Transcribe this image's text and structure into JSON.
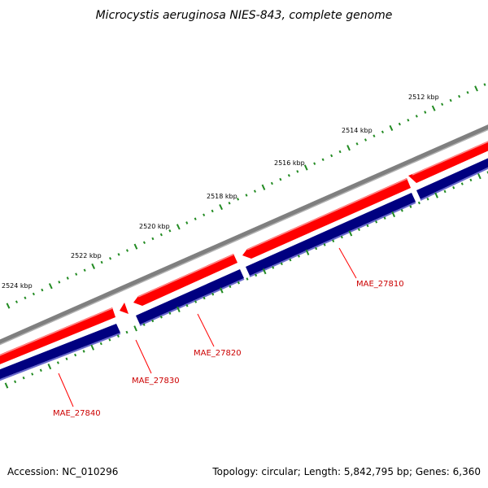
{
  "title": "Microcystis aeruginosa NIES-843, complete genome",
  "scale_labels": [
    "2512 kbp",
    "2514 kbp",
    "2516 kbp",
    "2518 kbp",
    "2520 kbp",
    "2522 kbp",
    "2524 kbp"
  ],
  "genes": [
    {
      "locus": "MAE_27810",
      "strand": "-"
    },
    {
      "locus": "MAE_27820",
      "strand": "-"
    },
    {
      "locus": "MAE_27830",
      "strand": "-"
    },
    {
      "locus": "MAE_27840",
      "strand": "-"
    }
  ],
  "footer": {
    "accession": "Accession: NC_010296",
    "summary": "Topology: circular; Length: 5,842,795 bp; Genes: 6,360"
  },
  "colors": {
    "backbone": "#7f7f7f",
    "forward_feature": "#ff0000",
    "reverse_feature": "#000080",
    "ticks": "#228b22",
    "gene_label": "#cc0000"
  }
}
